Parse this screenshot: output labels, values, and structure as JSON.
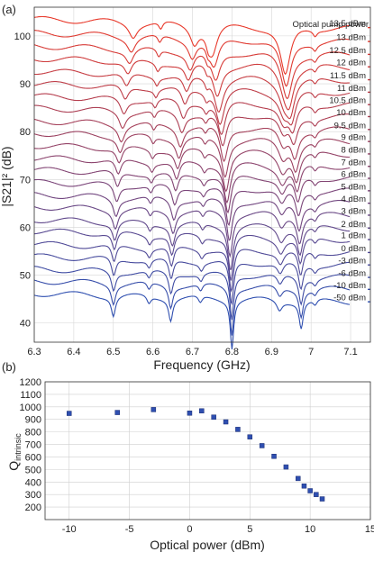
{
  "panels": {
    "a": "(a)",
    "b": "(b)"
  },
  "chart_data": [
    {
      "type": "line",
      "panel": "(a)",
      "xlabel": "Frequency (GHz)",
      "ylabel": "|S21|² (dB)",
      "xlim": [
        6.3,
        7.15
      ],
      "ylim": [
        36,
        106
      ],
      "xticks": [
        "6.3",
        "6.4",
        "6.5",
        "6.6",
        "6.7",
        "6.8",
        "6.9",
        "7",
        "7.1"
      ],
      "yticks": [
        "40",
        "50",
        "60",
        "70",
        "80",
        "90",
        "100"
      ],
      "legend_title": "Optical pump power",
      "grid": true,
      "series_colors": [
        "#e8392b",
        "#2f4fb0"
      ],
      "series": [
        {
          "name": "13.5 dBm",
          "baseline": 103.5
        },
        {
          "name": "13 dBm",
          "baseline": 100.6
        },
        {
          "name": "12.5 dBm",
          "baseline": 97.9
        },
        {
          "name": "12 dBm",
          "baseline": 95.3
        },
        {
          "name": "11.5 dBm",
          "baseline": 92.6
        },
        {
          "name": "11 dBm",
          "baseline": 90.0
        },
        {
          "name": "10.5 dBm",
          "baseline": 87.4
        },
        {
          "name": "10 dBm",
          "baseline": 84.9
        },
        {
          "name": "9.5 dBm",
          "baseline": 82.2
        },
        {
          "name": "9 dBm",
          "baseline": 79.7
        },
        {
          "name": "8 dBm",
          "baseline": 77.1
        },
        {
          "name": "7 dBm",
          "baseline": 74.5
        },
        {
          "name": "6 dBm",
          "baseline": 72.0
        },
        {
          "name": "5 dBm",
          "baseline": 69.4
        },
        {
          "name": "4 dBm",
          "baseline": 66.8
        },
        {
          "name": "3 dBm",
          "baseline": 64.3
        },
        {
          "name": "2 dBm",
          "baseline": 61.6
        },
        {
          "name": "1 dBm",
          "baseline": 59.2
        },
        {
          "name": "0 dBm",
          "baseline": 56.5
        },
        {
          "name": "-3 dBm",
          "baseline": 53.9
        },
        {
          "name": "-6 dBm",
          "baseline": 51.3
        },
        {
          "name": "-10 dBm",
          "baseline": 48.8
        },
        {
          "name": "-50 dBm",
          "baseline": 46.2
        }
      ]
    },
    {
      "type": "scatter",
      "panel": "(b)",
      "xlabel": "Optical power (dBm)",
      "ylabel": "Q_intrinsic",
      "ylabel_main": "Q",
      "ylabel_sub": "intrinsic",
      "xlim": [
        -12,
        15
      ],
      "ylim": [
        100,
        1200
      ],
      "xticks": [
        "-10",
        "-5",
        "0",
        "5",
        "10",
        "15"
      ],
      "yticks": [
        "200",
        "300",
        "400",
        "500",
        "600",
        "700",
        "800",
        "900",
        "1000",
        "1100",
        "1200"
      ],
      "grid": true,
      "marker_color": "#2f4fb0",
      "x": [
        -10,
        -6,
        -3,
        0,
        1,
        2,
        3,
        4,
        5,
        6,
        7,
        8,
        9,
        9.5,
        10,
        10.5,
        11
      ],
      "y": [
        948,
        955,
        978,
        950,
        968,
        918,
        880,
        820,
        760,
        690,
        605,
        520,
        428,
        368,
        330,
        300,
        265
      ]
    }
  ]
}
